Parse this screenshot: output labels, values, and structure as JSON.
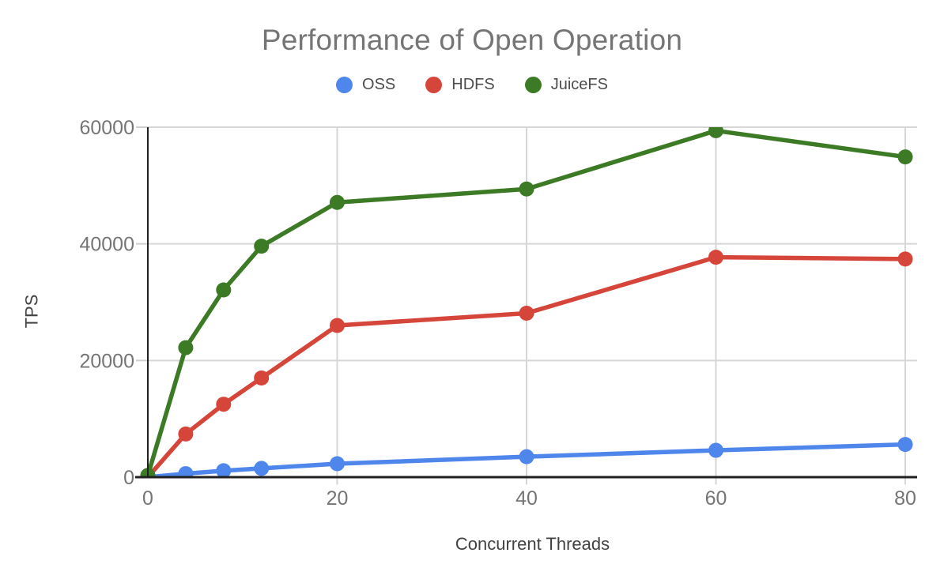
{
  "chart_title": "Performance of Open Operation",
  "axis_titles": {
    "x": "Concurrent Threads",
    "y": "TPS"
  },
  "colors": {
    "oss": "#4e86ec",
    "hdfs": "#d6453a",
    "juicefs": "#3c7a26",
    "gridline": "#d6d6d6",
    "axis": "#212121",
    "tick_label": "#757575",
    "title": "#757575",
    "axis_title": "#424242",
    "legend_label": "#4d4d4d"
  },
  "chart_data": {
    "type": "line",
    "title": "Performance of Open Operation",
    "xlabel": "Concurrent Threads",
    "ylabel": "TPS",
    "x": [
      0,
      4,
      8,
      12,
      20,
      40,
      60,
      80
    ],
    "series": [
      {
        "name": "OSS",
        "color": "#4e86ec",
        "values": [
          0,
          600,
          1100,
          1500,
          2300,
          3500,
          4600,
          5600
        ]
      },
      {
        "name": "HDFS",
        "color": "#d6453a",
        "values": [
          0,
          7400,
          12500,
          17000,
          26000,
          28100,
          37700,
          37400
        ]
      },
      {
        "name": "JuiceFS",
        "color": "#3c7a26",
        "values": [
          300,
          22200,
          32100,
          39600,
          47100,
          49400,
          59400,
          54900
        ]
      }
    ],
    "xlim": [
      0,
      80
    ],
    "ylim": [
      0,
      60000
    ],
    "xticks": [
      0,
      20,
      40,
      60,
      80
    ],
    "yticks": [
      0,
      20000,
      40000,
      60000
    ],
    "grid": true,
    "legend_position": "top",
    "marker": "circle"
  }
}
